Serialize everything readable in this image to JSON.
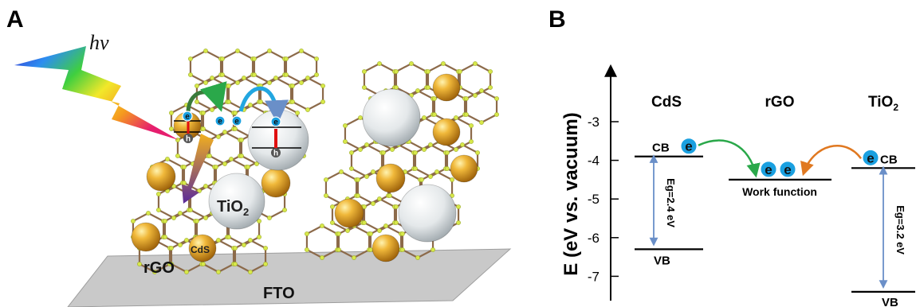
{
  "panel_a": {
    "panel_label": "A",
    "light_label": "hν",
    "electron_label": "e",
    "hole_label": "h",
    "tio2_label": "TiO",
    "tio2_subscript": "2",
    "cds_label": "CdS",
    "rgo_label": "rGO",
    "substrate_label": "FTO"
  },
  "panel_b": {
    "panel_label": "B",
    "y_axis_label": "E (eV vs. vacuum)",
    "y_ticks": [
      "-3",
      "-4",
      "-5",
      "-6",
      "-7"
    ],
    "columns": {
      "cds": "CdS",
      "rgo": "rGO",
      "tio2": "TiO",
      "tio2_subscript": "2"
    },
    "levels": {
      "cds_cb": -3.9,
      "cds_vb": -6.3,
      "rgo_wf": -4.5,
      "tio2_cb": -4.2,
      "tio2_vb": -7.4
    },
    "cb_label": "CB",
    "vb_label": "VB",
    "work_function_label": "Work function",
    "cds_gap_label": "Eg=2.4 eV",
    "tio2_gap_label": "Eg=3.2 eV",
    "electron_label": "e"
  },
  "colors": {
    "sphere_gold": "#d99a1c",
    "sphere_silver": "#d6dbdd",
    "lattice_bond": "#8c6a4a",
    "lattice_atom": "#d8e84a",
    "electron_blue": "#1aa0e0",
    "green_arrow": "#2aa84a",
    "orange_arrow": "#e07820",
    "gap_arrow": "#6a8fc8",
    "fto_plate": "#c8c8c8"
  }
}
